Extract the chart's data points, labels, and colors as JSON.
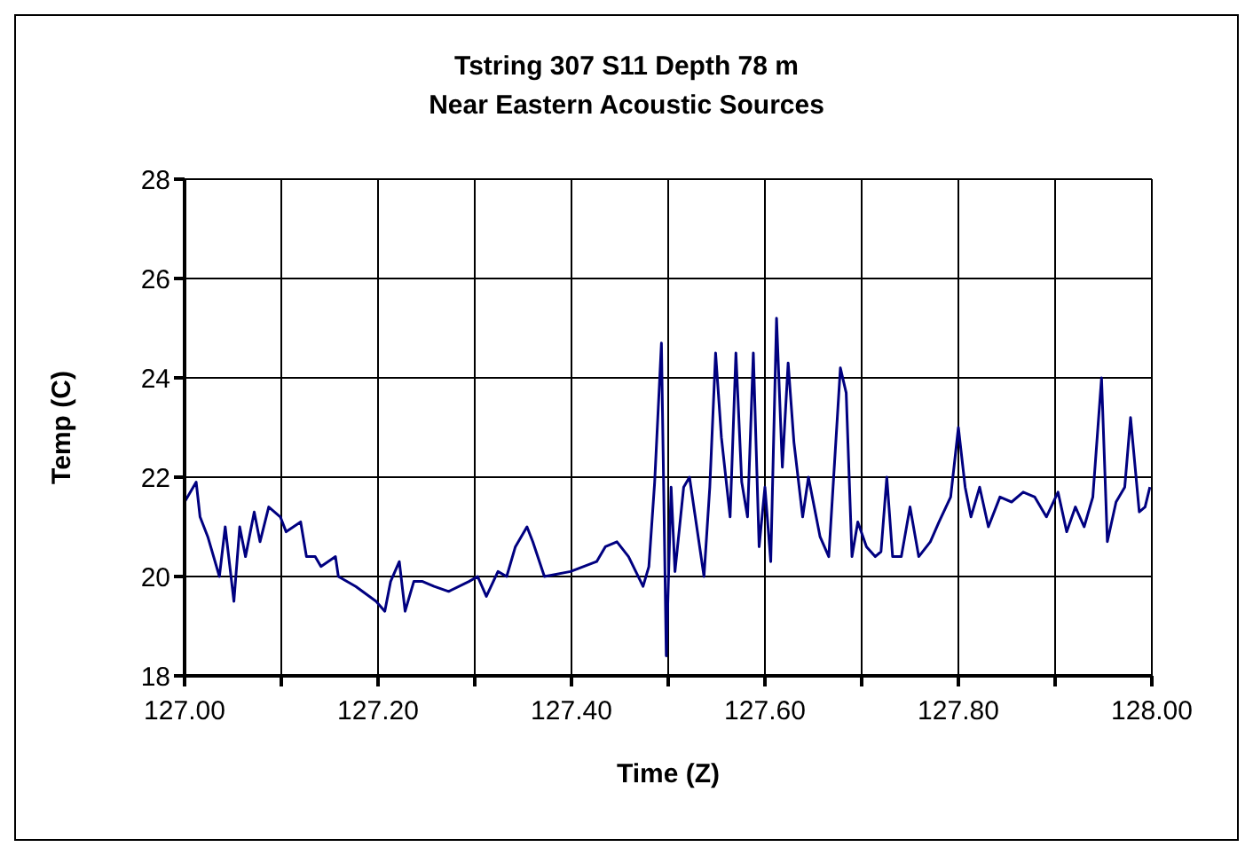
{
  "chart_data": {
    "type": "line",
    "title": "Tstring 307 S11 Depth 78 m",
    "subtitle": "Near Eastern Acoustic Sources",
    "xlabel": "Time (Z)",
    "ylabel": "Temp (C)",
    "xlim": [
      127,
      128
    ],
    "ylim": [
      18,
      28
    ],
    "xticks": [
      {
        "value": 127,
        "label": "127.00"
      },
      {
        "value": 127.1,
        "label": null
      },
      {
        "value": 127.2,
        "label": "127.20"
      },
      {
        "value": 127.3,
        "label": null
      },
      {
        "value": 127.4,
        "label": "127.40"
      },
      {
        "value": 127.5,
        "label": null
      },
      {
        "value": 127.6,
        "label": "127.60"
      },
      {
        "value": 127.7,
        "label": null
      },
      {
        "value": 127.8,
        "label": "127.80"
      },
      {
        "value": 127.9,
        "label": null
      },
      {
        "value": 128,
        "label": "128.00"
      }
    ],
    "yticks": [
      18,
      20,
      22,
      24,
      26,
      28
    ],
    "grid": true,
    "x": [
      127.0,
      127.012,
      127.016,
      127.024,
      127.036,
      127.042,
      127.051,
      127.057,
      127.063,
      127.072,
      127.078,
      127.087,
      127.099,
      127.105,
      127.12,
      127.126,
      127.135,
      127.141,
      127.156,
      127.159,
      127.177,
      127.198,
      127.207,
      127.213,
      127.222,
      127.228,
      127.237,
      127.246,
      127.258,
      127.273,
      127.294,
      127.303,
      127.312,
      127.324,
      127.333,
      127.342,
      127.354,
      127.36,
      127.372,
      127.399,
      127.426,
      127.435,
      127.447,
      127.459,
      127.474,
      127.48,
      127.486,
      127.493,
      127.498,
      127.503,
      127.507,
      127.516,
      127.522,
      127.537,
      127.543,
      127.549,
      127.555,
      127.564,
      127.57,
      127.576,
      127.582,
      127.588,
      127.594,
      127.6,
      127.606,
      127.612,
      127.618,
      127.624,
      127.63,
      127.639,
      127.645,
      127.657,
      127.666,
      127.672,
      127.678,
      127.684,
      127.69,
      127.696,
      127.705,
      127.714,
      127.72,
      127.726,
      127.732,
      127.741,
      127.75,
      127.759,
      127.771,
      127.78,
      127.792,
      127.8,
      127.807,
      127.813,
      127.822,
      127.831,
      127.843,
      127.855,
      127.867,
      127.879,
      127.891,
      127.903,
      127.912,
      127.921,
      127.93,
      127.939,
      127.948,
      127.954,
      127.963,
      127.972,
      127.978,
      127.987,
      127.993,
      127.998
    ],
    "series": [
      {
        "color": "#000080",
        "values": [
          21.5,
          21.9,
          21.2,
          20.8,
          20.0,
          21.0,
          19.5,
          21.0,
          20.4,
          21.3,
          20.7,
          21.4,
          21.2,
          20.9,
          21.1,
          20.4,
          20.4,
          20.2,
          20.4,
          20.0,
          19.8,
          19.5,
          19.3,
          19.9,
          20.3,
          19.3,
          19.9,
          19.9,
          19.8,
          19.7,
          19.9,
          20.0,
          19.6,
          20.1,
          20.0,
          20.6,
          21.0,
          20.7,
          20.0,
          20.1,
          20.3,
          20.6,
          20.7,
          20.4,
          19.8,
          20.2,
          21.9,
          24.7,
          18.4,
          21.8,
          20.1,
          21.8,
          22.0,
          20.0,
          21.8,
          24.5,
          22.8,
          21.2,
          24.5,
          21.9,
          21.2,
          24.5,
          20.6,
          21.8,
          20.3,
          25.2,
          22.2,
          24.3,
          22.7,
          21.2,
          22.0,
          20.8,
          20.4,
          22.3,
          24.2,
          23.7,
          20.4,
          21.1,
          20.6,
          20.4,
          20.5,
          22.0,
          20.4,
          20.4,
          21.4,
          20.4,
          20.7,
          21.1,
          21.6,
          23.0,
          21.8,
          21.2,
          21.8,
          21.0,
          21.6,
          21.5,
          21.7,
          21.6,
          21.2,
          21.7,
          20.9,
          21.4,
          21.0,
          21.6,
          24.0,
          20.7,
          21.5,
          21.8,
          23.2,
          21.3,
          21.4,
          21.8
        ]
      }
    ]
  }
}
